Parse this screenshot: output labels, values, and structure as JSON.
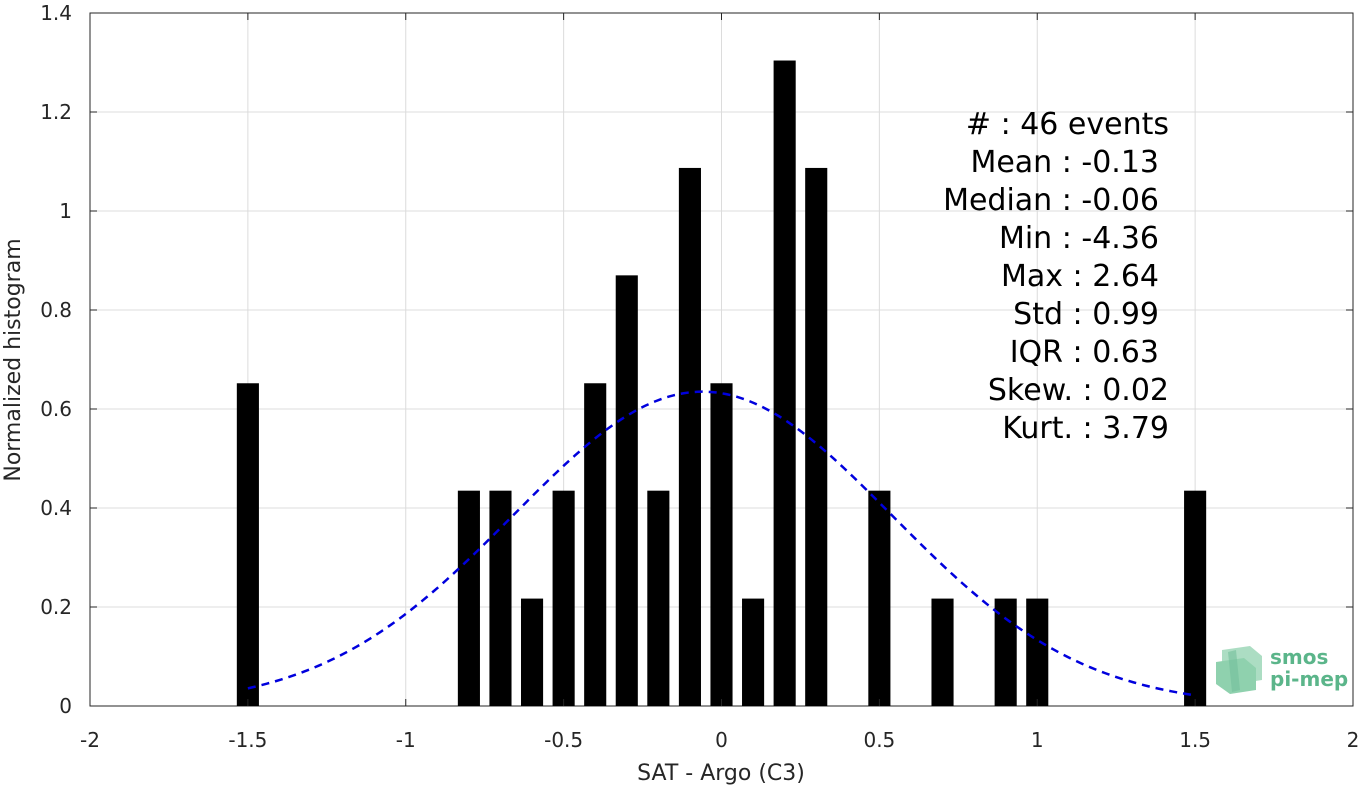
{
  "chart_data": {
    "type": "bar",
    "title": "",
    "xlabel": "SAT - Argo (C3)",
    "ylabel": "Normalized histogram",
    "xlim": [
      -2,
      2
    ],
    "ylim": [
      0,
      1.4
    ],
    "xticks": [
      -2,
      -1.5,
      -1,
      -0.5,
      0,
      0.5,
      1,
      1.5,
      2
    ],
    "xtick_labels": [
      "-2",
      "-1.5",
      "-1",
      "-0.5",
      "0",
      "0.5",
      "1",
      "1.5",
      "2"
    ],
    "yticks": [
      0,
      0.2,
      0.4,
      0.6,
      0.8,
      1,
      1.2,
      1.4
    ],
    "ytick_labels": [
      "0",
      "0.2",
      "0.4",
      "0.6",
      "0.8",
      "1",
      "1.2",
      "1.4"
    ],
    "grid": true,
    "bar_width": 0.07,
    "bar_color": "#000000",
    "x": [
      -1.5,
      -0.8,
      -0.7,
      -0.6,
      -0.5,
      -0.4,
      -0.3,
      -0.2,
      -0.1,
      0,
      0.1,
      0.2,
      0.3,
      0.5,
      0.7,
      0.9,
      1.0,
      1.5
    ],
    "values": [
      0.652,
      0.435,
      0.435,
      0.217,
      0.435,
      0.652,
      0.87,
      0.435,
      1.087,
      0.652,
      0.217,
      1.304,
      1.087,
      0.435,
      0.217,
      0.217,
      0.217,
      0.435
    ],
    "fit_curve": {
      "type": "gaussian",
      "style": "dashed",
      "color": "#0000dd",
      "mean": -0.06,
      "peak": 0.635,
      "sigma": 0.6,
      "x_range": [
        -1.5,
        1.5
      ]
    },
    "annotations": [
      "#  : 46 events",
      "Mean : -0.13",
      "Median : -0.06",
      "Min : -4.36",
      "Max : 2.64",
      "Std : 0.99",
      "IQR : 0.63",
      "Skew. : 0.02",
      "Kurt. : 3.79"
    ]
  },
  "logo": {
    "line1": "smos",
    "line2": "pi-mep",
    "color": "#5bb58a"
  }
}
